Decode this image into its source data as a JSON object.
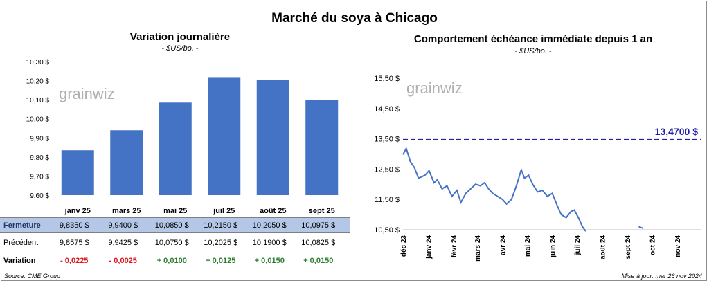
{
  "title": "Marché du soya à Chicago",
  "chart_data": [
    {
      "type": "bar",
      "title": "Variation journalière",
      "subtitle": "- $US/bo. -",
      "categories": [
        "janv 25",
        "mars 25",
        "mai 25",
        "juil 25",
        "août 25",
        "sept 25"
      ],
      "values": [
        9.835,
        9.94,
        10.085,
        10.215,
        10.205,
        10.0975
      ],
      "ylim": [
        9.6,
        10.3
      ],
      "yticks": [
        "9,60 $",
        "9,70 $",
        "9,80 $",
        "9,90 $",
        "10,00 $",
        "10,10 $",
        "10,20 $",
        "10,30 $"
      ],
      "color": "#4472c4",
      "grid": false
    },
    {
      "type": "line",
      "title": "Comportement échéance immédiate depuis 1 an",
      "subtitle": "- $US/bo. -",
      "ylim": [
        10.5,
        15.5
      ],
      "yticks": [
        "10,50 $",
        "11,50 $",
        "12,50 $",
        "13,50 $",
        "14,50 $",
        "15,50 $"
      ],
      "xticks": [
        "déc 23",
        "janv 24",
        "févr 24",
        "mars 24",
        "avr 24",
        "mai 24",
        "juin 24",
        "juil 24",
        "août 24",
        "sept 24",
        "oct 24",
        "nov 24"
      ],
      "x": [
        "2023-12-01",
        "2023-12-05",
        "2023-12-10",
        "2023-12-15",
        "2023-12-20",
        "2023-12-28",
        "2024-01-02",
        "2024-01-08",
        "2024-01-12",
        "2024-01-18",
        "2024-01-24",
        "2024-01-30",
        "2024-02-05",
        "2024-02-10",
        "2024-02-16",
        "2024-02-22",
        "2024-02-28",
        "2024-03-05",
        "2024-03-10",
        "2024-03-15",
        "2024-03-20",
        "2024-03-26",
        "2024-04-01",
        "2024-04-06",
        "2024-04-12",
        "2024-04-18",
        "2024-04-24",
        "2024-04-28",
        "2024-05-03",
        "2024-05-08",
        "2024-05-14",
        "2024-05-20",
        "2024-05-26",
        "2024-06-01",
        "2024-06-07",
        "2024-06-12",
        "2024-06-18",
        "2024-06-24",
        "2024-06-28",
        "2024-07-03",
        "2024-07-08",
        "2024-07-12"
      ],
      "values": [
        12.98,
        13.18,
        12.75,
        12.55,
        12.2,
        12.3,
        12.45,
        12.05,
        12.15,
        11.85,
        11.95,
        11.6,
        11.8,
        11.4,
        11.7,
        11.85,
        12.0,
        11.95,
        12.05,
        11.85,
        11.7,
        11.6,
        11.5,
        11.35,
        11.5,
        11.95,
        12.48,
        12.2,
        12.3,
        12.0,
        11.75,
        11.8,
        11.6,
        11.7,
        11.3,
        11.0,
        10.9,
        11.1,
        11.15,
        10.9,
        10.6,
        10.45
      ],
      "reference_line": {
        "value": 13.47,
        "label": "13,4700 $",
        "color": "#1f1fa8"
      },
      "color": "#4472c4",
      "grid": false
    }
  ],
  "table": {
    "rows": [
      {
        "label": "Fermeture",
        "values": [
          "9,8350",
          "9,9400",
          "10,0850",
          "10,2150",
          "10,2050",
          "10,0975"
        ]
      },
      {
        "label": "Précédent",
        "values": [
          "9,8575",
          "9,9425",
          "10,0750",
          "10,2025",
          "10,1900",
          "10,0825"
        ]
      },
      {
        "label": "Variation",
        "values": [
          "- 0,0225",
          "- 0,0025",
          "+ 0,0100",
          "+ 0,0125",
          "+ 0,0150",
          "+ 0,0150"
        ]
      }
    ],
    "currency": "$"
  },
  "watermark": "grainwiz",
  "source": "Source: CME Group",
  "update": "Mise à jour: mar 26 nov 2024"
}
